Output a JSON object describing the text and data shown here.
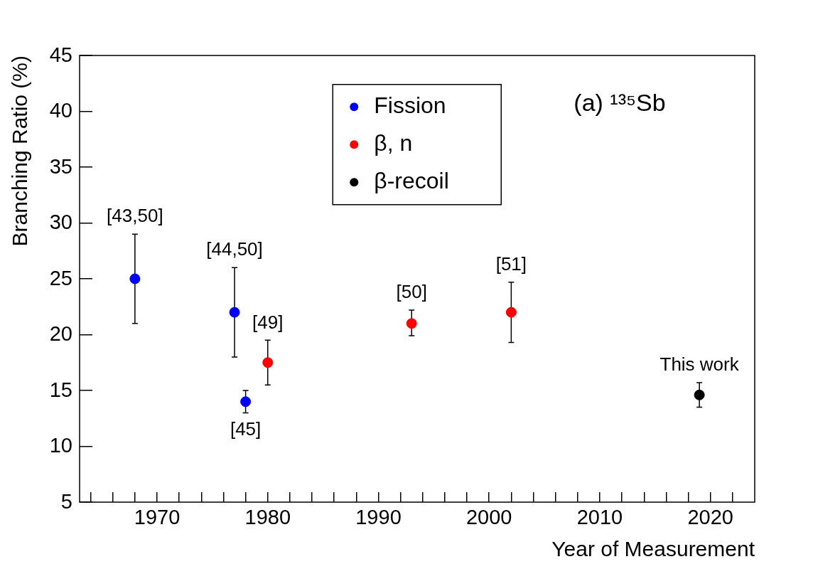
{
  "chart_data": {
    "type": "scatter",
    "xlabel": "Year of Measurement",
    "ylabel": "Branching Ratio (%)",
    "xlim": [
      1963,
      2024
    ],
    "ylim": [
      5,
      45
    ],
    "xticks": [
      {
        "value": 1964,
        "label": null
      },
      {
        "value": 1966,
        "label": null
      },
      {
        "value": 1968,
        "label": null
      },
      1970,
      {
        "value": 1972,
        "label": null
      },
      {
        "value": 1974,
        "label": null
      },
      {
        "value": 1976,
        "label": null
      },
      {
        "value": 1978,
        "label": null
      },
      1980,
      {
        "value": 1982,
        "label": null
      },
      {
        "value": 1984,
        "label": null
      },
      {
        "value": 1986,
        "label": null
      },
      {
        "value": 1988,
        "label": null
      },
      1990,
      {
        "value": 1992,
        "label": null
      },
      {
        "value": 1994,
        "label": null
      },
      {
        "value": 1996,
        "label": null
      },
      {
        "value": 1998,
        "label": null
      },
      2000,
      {
        "value": 2002,
        "label": null
      },
      {
        "value": 2004,
        "label": null
      },
      {
        "value": 2006,
        "label": null
      },
      {
        "value": 2008,
        "label": null
      },
      2010,
      {
        "value": 2012,
        "label": null
      },
      {
        "value": 2014,
        "label": null
      },
      {
        "value": 2016,
        "label": null
      },
      {
        "value": 2018,
        "label": null
      },
      2020,
      {
        "value": 2022,
        "label": null
      }
    ],
    "yticks": [
      5,
      10,
      15,
      20,
      25,
      30,
      35,
      40,
      45
    ],
    "grid": false,
    "legend": "top",
    "marker": "circle",
    "series": [
      {
        "name": "Fission",
        "color": "#0000ff",
        "x": [
          1968,
          1977,
          1978
        ],
        "values": [
          25,
          22,
          14
        ],
        "errors": [
          [
            21,
            29
          ],
          [
            18,
            26
          ],
          [
            13,
            15
          ]
        ]
      },
      {
        "name": "β, n",
        "color": "#ff0000",
        "x": [
          1980,
          1993,
          2002
        ],
        "values": [
          17.5,
          21,
          22
        ],
        "errors": [
          [
            15.5,
            19.5
          ],
          [
            19.9,
            22.2
          ],
          [
            19.3,
            24.7
          ]
        ]
      },
      {
        "name": "β-recoil",
        "color": "#000000",
        "x": [
          2019
        ],
        "values": [
          14.6
        ],
        "errors": [
          [
            13.5,
            15.7
          ]
        ]
      }
    ],
    "annotations": [
      "(a) ¹³⁵Sb",
      {
        "text": "[43,50]",
        "x": 1968,
        "y": 25
      },
      {
        "text": "[44,50]",
        "x": 1977,
        "y": 22
      },
      {
        "text": "[45]",
        "x": 1978,
        "y": 14
      },
      {
        "text": "[49]",
        "x": 1980,
        "y": 17.5
      },
      {
        "text": "[50]",
        "x": 1993,
        "y": 21
      },
      {
        "text": "[51]",
        "x": 2002,
        "y": 22
      },
      {
        "text": "This work",
        "x": 2019,
        "y": 14.6
      }
    ]
  }
}
